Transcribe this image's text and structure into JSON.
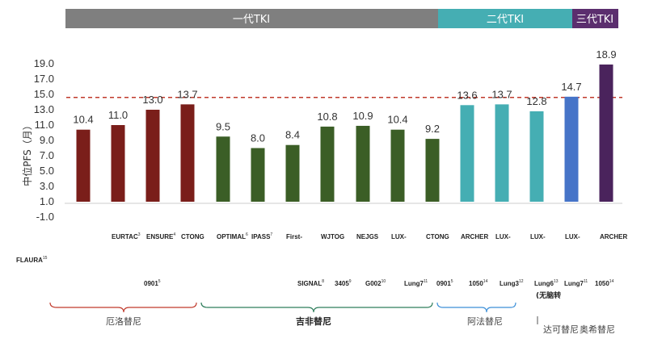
{
  "generations": [
    {
      "label": "一代TKI",
      "color": "#7f7f7f"
    },
    {
      "label": "二代TKI",
      "color": "#45aeb3"
    },
    {
      "label": "三代TKI",
      "color": "#5b2e6e"
    }
  ],
  "chart_data": {
    "type": "bar",
    "ylabel": "中位PFS（月）",
    "yticks": [
      "19.0",
      "17.0",
      "15.0",
      "13.0",
      "11.0",
      "9.0",
      "7.0",
      "5.0",
      "3.0",
      "1.0",
      "-1.0"
    ],
    "ylim": [
      -1,
      19
    ],
    "reference_line": 14.6,
    "values": [
      10.4,
      11.0,
      13.0,
      13.7,
      9.5,
      8.0,
      8.4,
      10.8,
      10.9,
      10.4,
      9.2,
      13.6,
      13.7,
      12.8,
      14.7,
      18.9
    ],
    "value_labels": [
      "10.4",
      "11.0",
      "13.0",
      "13.7",
      "9.5",
      "8.0",
      "8.4",
      "10.8",
      "10.9",
      "10.4",
      "9.2",
      "13.6",
      "13.7",
      "12.8",
      "14.7",
      "18.9"
    ],
    "colors": [
      "#7a1e1a",
      "#7a1e1a",
      "#7a1e1a",
      "#7a1e1a",
      "#3b5e26",
      "#3b5e26",
      "#3b5e26",
      "#3b5e26",
      "#3b5e26",
      "#3b5e26",
      "#3b5e26",
      "#45aeb3",
      "#45aeb3",
      "#45aeb3",
      "#4674c8",
      "#4a235c"
    ],
    "cat_line1": [
      {
        "t": "EURTAC",
        "s": "3"
      },
      {
        "t": "ENSURE",
        "s": "4"
      },
      {
        "t": "CTONG",
        "s": ""
      },
      {
        "t": "OPTIMAL",
        "s": "6"
      },
      {
        "t": "IPASS",
        "s": "7"
      },
      {
        "t": "First-",
        "s": ""
      },
      {
        "t": "WJTOG",
        "s": ""
      },
      {
        "t": "NEJGS",
        "s": ""
      },
      {
        "t": "LUX-",
        "s": ""
      },
      {
        "t": "CTONG",
        "s": ""
      },
      {
        "t": "ARCHER",
        "s": ""
      },
      {
        "t": "LUX-",
        "s": ""
      },
      {
        "t": "LUX-",
        "s": ""
      },
      {
        "t": "LUX-",
        "s": ""
      },
      {
        "t": "ARCHER",
        "s": ""
      }
    ],
    "cat_line0": {
      "t": "FLAURA",
      "s": "15"
    },
    "cat_line2": [
      {
        "t": "0901",
        "s": "5"
      },
      {
        "t": "SIGNAL",
        "s": "8"
      },
      {
        "t": "3405",
        "s": "9"
      },
      {
        "t": "G002",
        "s": "10"
      },
      {
        "t": "Lung7",
        "s": "11"
      },
      {
        "t": "0901",
        "s": "5"
      },
      {
        "t": "1050",
        "s": "14"
      },
      {
        "t": "Lung3",
        "s": "12"
      },
      {
        "t": "Lung6",
        "s": "13"
      },
      {
        "t": "Lung7",
        "s": "11"
      },
      {
        "t": "1050",
        "s": "14"
      }
    ],
    "cat_line3": "(无脑转"
  },
  "drugs": [
    "厄洛替尼",
    "吉非替尼",
    "阿法替尼",
    "达可替尼",
    "奥希替尼"
  ]
}
